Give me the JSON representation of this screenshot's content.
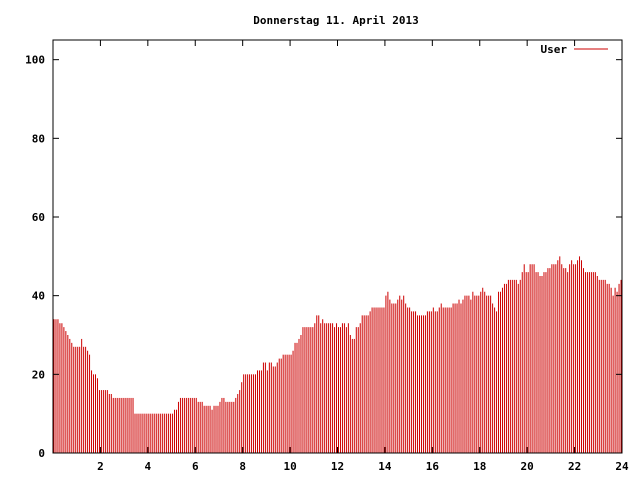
{
  "chart_data": {
    "type": "bar",
    "title": "Donnerstag 11. April 2013",
    "xlabel": "",
    "ylabel": "",
    "xlim": [
      0,
      24
    ],
    "ylim": [
      0,
      105
    ],
    "x_ticks": [
      "2",
      "4",
      "6",
      "8",
      "10",
      "12",
      "14",
      "16",
      "18",
      "20",
      "22",
      "24"
    ],
    "y_ticks": [
      "0",
      "20",
      "40",
      "60",
      "80",
      "100"
    ],
    "grid": false,
    "legend_position": "top-right",
    "bar_interval_minutes": 5,
    "series": [
      {
        "name": "User",
        "color": "#cc0000",
        "values": [
          34,
          34,
          34,
          33,
          33,
          32,
          31,
          30,
          29,
          28,
          27,
          27,
          27,
          27,
          29,
          27,
          27,
          26,
          25,
          21,
          20,
          20,
          19,
          16,
          16,
          16,
          16,
          16,
          15,
          15,
          14,
          14,
          14,
          14,
          14,
          14,
          14,
          14,
          14,
          14,
          14,
          10,
          10,
          10,
          10,
          10,
          10,
          10,
          10,
          10,
          10,
          10,
          10,
          10,
          10,
          10,
          10,
          10,
          10,
          10,
          10,
          11,
          11,
          13,
          14,
          14,
          14,
          14,
          14,
          14,
          14,
          14,
          14,
          13,
          13,
          13,
          12,
          12,
          12,
          12,
          11,
          12,
          12,
          12,
          13,
          14,
          14,
          13,
          13,
          13,
          13,
          13,
          14,
          15,
          16,
          18,
          20,
          20,
          20,
          20,
          20,
          20,
          20,
          21,
          21,
          21,
          23,
          23,
          21,
          23,
          23,
          22,
          22,
          23,
          24,
          24,
          25,
          25,
          25,
          25,
          25,
          26,
          28,
          28,
          29,
          30,
          32,
          32,
          32,
          32,
          32,
          32,
          33,
          35,
          35,
          33,
          34,
          33,
          33,
          33,
          33,
          33,
          32,
          33,
          32,
          32,
          33,
          33,
          32,
          33,
          30,
          29,
          29,
          32,
          32,
          33,
          35,
          35,
          35,
          35,
          36,
          37,
          37,
          37,
          37,
          37,
          37,
          37,
          40,
          41,
          39,
          38,
          38,
          38,
          39,
          40,
          39,
          40,
          38,
          37,
          37,
          36,
          36,
          36,
          35,
          35,
          35,
          35,
          35,
          36,
          36,
          36,
          37,
          36,
          36,
          37,
          38,
          37,
          37,
          37,
          37,
          37,
          38,
          38,
          38,
          39,
          38,
          39,
          40,
          40,
          40,
          39,
          41,
          40,
          40,
          40,
          41,
          42,
          41,
          40,
          40,
          40,
          38,
          37,
          36,
          41,
          41,
          42,
          43,
          43,
          44,
          44,
          44,
          44,
          44,
          43,
          44,
          46,
          48,
          46,
          46,
          48,
          48,
          48,
          46,
          46,
          45,
          45,
          46,
          46,
          47,
          47,
          48,
          48,
          48,
          49,
          50,
          48,
          47,
          47,
          46,
          48,
          49,
          48,
          48,
          49,
          50,
          49,
          47,
          46,
          46,
          46,
          46,
          46,
          46,
          45,
          44,
          44,
          44,
          44,
          43,
          43,
          42,
          40,
          42,
          41,
          43,
          44
        ]
      }
    ]
  }
}
